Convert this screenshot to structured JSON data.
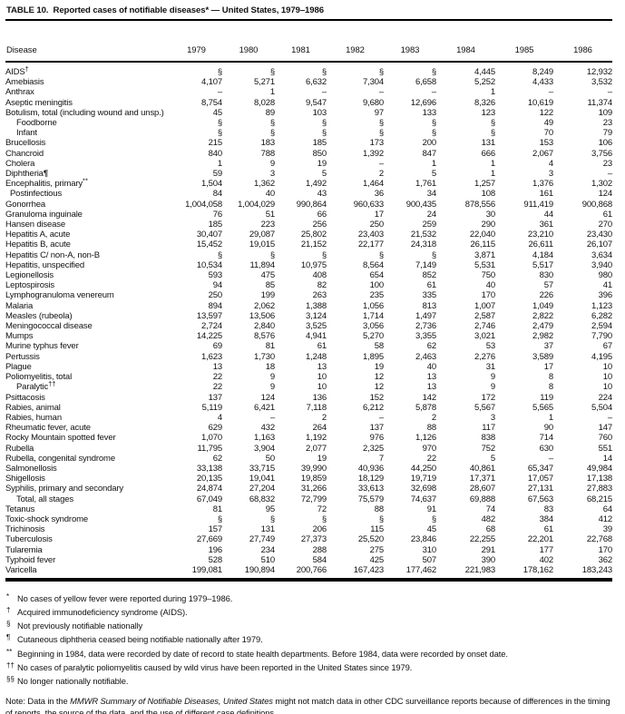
{
  "title": "TABLE 10.  Reported cases of notifiable diseases* — United States, 1979–1986",
  "table": {
    "columns": [
      "Disease",
      "1979",
      "1980",
      "1981",
      "1982",
      "1983",
      "1984",
      "1985",
      "1986"
    ],
    "rows": [
      {
        "disease": "AIDS",
        "marker": "†",
        "indent": 0,
        "values": [
          "§",
          "§",
          "§",
          "§",
          "§",
          "4,445",
          "8,249",
          "12,932"
        ]
      },
      {
        "disease": "Amebiasis",
        "marker": "",
        "indent": 0,
        "values": [
          "4,107",
          "5,271",
          "6,632",
          "7,304",
          "6,658",
          "5,252",
          "4,433",
          "3,532"
        ]
      },
      {
        "disease": "Anthrax",
        "marker": "",
        "indent": 0,
        "values": [
          "–",
          "1",
          "–",
          "–",
          "–",
          "1",
          "–",
          "–"
        ]
      },
      {
        "disease": "Aseptic meningitis",
        "marker": "",
        "indent": 0,
        "values": [
          "8,754",
          "8,028",
          "9,547",
          "9,680",
          "12,696",
          "8,326",
          "10,619",
          "11,374"
        ]
      },
      {
        "disease": "Botulism, total (including wound and unsp.)",
        "marker": "",
        "indent": 0,
        "values": [
          "45",
          "89",
          "103",
          "97",
          "133",
          "123",
          "122",
          "109"
        ]
      },
      {
        "disease": "Foodborne",
        "marker": "",
        "indent": 2,
        "values": [
          "§",
          "§",
          "§",
          "§",
          "§",
          "§",
          "49",
          "23"
        ]
      },
      {
        "disease": "Infant",
        "marker": "",
        "indent": 2,
        "values": [
          "§",
          "§",
          "§",
          "§",
          "§",
          "§",
          "70",
          "79"
        ]
      },
      {
        "disease": "Brucellosis",
        "marker": "",
        "indent": 0,
        "values": [
          "215",
          "183",
          "185",
          "173",
          "200",
          "131",
          "153",
          "106"
        ]
      },
      {
        "disease": "Chancroid",
        "marker": "",
        "indent": 0,
        "values": [
          "840",
          "788",
          "850",
          "1,392",
          "847",
          "666",
          "2,067",
          "3,756"
        ]
      },
      {
        "disease": "Cholera",
        "marker": "",
        "indent": 0,
        "values": [
          "1",
          "9",
          "19",
          "–",
          "1",
          "1",
          "4",
          "23"
        ]
      },
      {
        "disease": "Diphtheria",
        "marker": "¶",
        "indent": 0,
        "values": [
          "59",
          "3",
          "5",
          "2",
          "5",
          "1",
          "3",
          "–"
        ]
      },
      {
        "disease": "Encephalitis, primary",
        "marker": "**",
        "indent": 0,
        "values": [
          "1,504",
          "1,362",
          "1,492",
          "1,464",
          "1,761",
          "1,257",
          "1,376",
          "1,302"
        ]
      },
      {
        "disease": "Postinfectious",
        "marker": "",
        "indent": 1,
        "values": [
          "84",
          "40",
          "43",
          "36",
          "34",
          "108",
          "161",
          "124"
        ]
      },
      {
        "disease": "Gonorrhea",
        "marker": "",
        "indent": 0,
        "values": [
          "1,004,058",
          "1,004,029",
          "990,864",
          "960,633",
          "900,435",
          "878,556",
          "911,419",
          "900,868"
        ]
      },
      {
        "disease": "Granuloma inguinale",
        "marker": "",
        "indent": 0,
        "values": [
          "76",
          "51",
          "66",
          "17",
          "24",
          "30",
          "44",
          "61"
        ]
      },
      {
        "disease": "Hansen disease",
        "marker": "",
        "indent": 0,
        "values": [
          "185",
          "223",
          "256",
          "250",
          "259",
          "290",
          "361",
          "270"
        ]
      },
      {
        "disease": "Hepatitis A, acute",
        "marker": "",
        "indent": 0,
        "values": [
          "30,407",
          "29,087",
          "25,802",
          "23,403",
          "21,532",
          "22,040",
          "23,210",
          "23,430"
        ]
      },
      {
        "disease": "Hepatitis B, acute",
        "marker": "",
        "indent": 0,
        "values": [
          "15,452",
          "19,015",
          "21,152",
          "22,177",
          "24,318",
          "26,115",
          "26,611",
          "26,107"
        ]
      },
      {
        "disease": "Hepatitis C/ non-A, non-B",
        "marker": "",
        "indent": 0,
        "values": [
          "§",
          "§",
          "§",
          "§",
          "§",
          "3,871",
          "4,184",
          "3,634"
        ]
      },
      {
        "disease": "Hepatitis, unspecified",
        "marker": "",
        "indent": 0,
        "values": [
          "10,534",
          "11,894",
          "10,975",
          "8,564",
          "7,149",
          "5,531",
          "5,517",
          "3,940"
        ]
      },
      {
        "disease": "Legionellosis",
        "marker": "",
        "indent": 0,
        "values": [
          "593",
          "475",
          "408",
          "654",
          "852",
          "750",
          "830",
          "980"
        ]
      },
      {
        "disease": "Leptospirosis",
        "marker": "",
        "indent": 0,
        "values": [
          "94",
          "85",
          "82",
          "100",
          "61",
          "40",
          "57",
          "41"
        ]
      },
      {
        "disease": "Lymphogranuloma venereum",
        "marker": "",
        "indent": 0,
        "values": [
          "250",
          "199",
          "263",
          "235",
          "335",
          "170",
          "226",
          "396"
        ]
      },
      {
        "disease": "Malaria",
        "marker": "",
        "indent": 0,
        "values": [
          "894",
          "2,062",
          "1,388",
          "1,056",
          "813",
          "1,007",
          "1,049",
          "1,123"
        ]
      },
      {
        "disease": "Measles (rubeola)",
        "marker": "",
        "indent": 0,
        "values": [
          "13,597",
          "13,506",
          "3,124",
          "1,714",
          "1,497",
          "2,587",
          "2,822",
          "6,282"
        ]
      },
      {
        "disease": "Meningococcal disease",
        "marker": "",
        "indent": 0,
        "values": [
          "2,724",
          "2,840",
          "3,525",
          "3,056",
          "2,736",
          "2,746",
          "2,479",
          "2,594"
        ]
      },
      {
        "disease": "Mumps",
        "marker": "",
        "indent": 0,
        "values": [
          "14,225",
          "8,576",
          "4,941",
          "5,270",
          "3,355",
          "3,021",
          "2,982",
          "7,790"
        ]
      },
      {
        "disease": "Murine typhus fever",
        "marker": "",
        "indent": 0,
        "values": [
          "69",
          "81",
          "61",
          "58",
          "62",
          "53",
          "37",
          "67"
        ]
      },
      {
        "disease": "Pertussis",
        "marker": "",
        "indent": 0,
        "values": [
          "1,623",
          "1,730",
          "1,248",
          "1,895",
          "2,463",
          "2,276",
          "3,589",
          "4,195"
        ]
      },
      {
        "disease": "Plague",
        "marker": "",
        "indent": 0,
        "values": [
          "13",
          "18",
          "13",
          "19",
          "40",
          "31",
          "17",
          "10"
        ]
      },
      {
        "disease": "Poliomyelitis, total",
        "marker": "",
        "indent": 0,
        "values": [
          "22",
          "9",
          "10",
          "12",
          "13",
          "9",
          "8",
          "10"
        ]
      },
      {
        "disease": "Paralytic",
        "marker": "††",
        "indent": 2,
        "values": [
          "22",
          "9",
          "10",
          "12",
          "13",
          "9",
          "8",
          "10"
        ]
      },
      {
        "disease": "Psittacosis",
        "marker": "",
        "indent": 0,
        "values": [
          "137",
          "124",
          "136",
          "152",
          "142",
          "172",
          "119",
          "224"
        ]
      },
      {
        "disease": "Rabies, animal",
        "marker": "",
        "indent": 0,
        "values": [
          "5,119",
          "6,421",
          "7,118",
          "6,212",
          "5,878",
          "5,567",
          "5,565",
          "5,504"
        ]
      },
      {
        "disease": "Rabies, human",
        "marker": "",
        "indent": 0,
        "values": [
          "4",
          "–",
          "2",
          "–",
          "2",
          "3",
          "1",
          "–"
        ]
      },
      {
        "disease": "Rheumatic fever, acute",
        "marker": "",
        "indent": 0,
        "values": [
          "629",
          "432",
          "264",
          "137",
          "88",
          "117",
          "90",
          "147"
        ]
      },
      {
        "disease": "Rocky Mountain spotted fever",
        "marker": "",
        "indent": 0,
        "values": [
          "1,070",
          "1,163",
          "1,192",
          "976",
          "1,126",
          "838",
          "714",
          "760"
        ]
      },
      {
        "disease": "Rubella",
        "marker": "",
        "indent": 0,
        "values": [
          "11,795",
          "3,904",
          "2,077",
          "2,325",
          "970",
          "752",
          "630",
          "551"
        ]
      },
      {
        "disease": "Rubella, congenital syndrome",
        "marker": "",
        "indent": 0,
        "values": [
          "62",
          "50",
          "19",
          "7",
          "22",
          "5",
          "–",
          "14"
        ]
      },
      {
        "disease": "Salmonellosis",
        "marker": "",
        "indent": 0,
        "values": [
          "33,138",
          "33,715",
          "39,990",
          "40,936",
          "44,250",
          "40,861",
          "65,347",
          "49,984"
        ]
      },
      {
        "disease": "Shigellosis",
        "marker": "",
        "indent": 0,
        "values": [
          "20,135",
          "19,041",
          "19,859",
          "18,129",
          "19,719",
          "17,371",
          "17,057",
          "17,138"
        ]
      },
      {
        "disease": "Syphilis, primary and secondary",
        "marker": "",
        "indent": 0,
        "values": [
          "24,874",
          "27,204",
          "31,266",
          "33,613",
          "32,698",
          "28,607",
          "27,131",
          "27,883"
        ]
      },
      {
        "disease": "Total, all stages",
        "marker": "",
        "indent": 2,
        "values": [
          "67,049",
          "68,832",
          "72,799",
          "75,579",
          "74,637",
          "69,888",
          "67,563",
          "68,215"
        ]
      },
      {
        "disease": "Tetanus",
        "marker": "",
        "indent": 0,
        "values": [
          "81",
          "95",
          "72",
          "88",
          "91",
          "74",
          "83",
          "64"
        ]
      },
      {
        "disease": "Toxic-shock syndrome",
        "marker": "",
        "indent": 0,
        "values": [
          "§",
          "§",
          "§",
          "§",
          "§",
          "482",
          "384",
          "412"
        ]
      },
      {
        "disease": "Trichinosis",
        "marker": "",
        "indent": 0,
        "values": [
          "157",
          "131",
          "206",
          "115",
          "45",
          "68",
          "61",
          "39"
        ]
      },
      {
        "disease": "Tuberculosis",
        "marker": "",
        "indent": 0,
        "values": [
          "27,669",
          "27,749",
          "27,373",
          "25,520",
          "23,846",
          "22,255",
          "22,201",
          "22,768"
        ]
      },
      {
        "disease": "Tularemia",
        "marker": "",
        "indent": 0,
        "values": [
          "196",
          "234",
          "288",
          "275",
          "310",
          "291",
          "177",
          "170"
        ]
      },
      {
        "disease": "Typhoid fever",
        "marker": "",
        "indent": 0,
        "values": [
          "528",
          "510",
          "584",
          "425",
          "507",
          "390",
          "402",
          "362"
        ]
      },
      {
        "disease": "Varicella",
        "marker": "",
        "indent": 0,
        "values": [
          "199,081",
          "190,894",
          "200,766",
          "167,423",
          "177,462",
          "221,983",
          "178,162",
          "183,243"
        ]
      }
    ]
  },
  "footnotes": [
    {
      "marker": "*",
      "text": "No cases of yellow fever were reported during 1979–1986."
    },
    {
      "marker": "†",
      "text": "Acquired immunodeficiency syndrome (AIDS)."
    },
    {
      "marker": "§",
      "text": "Not previously notifiable nationally"
    },
    {
      "marker": "¶",
      "text": "Cutaneous diphtheria ceased being notifiable nationally after 1979."
    },
    {
      "marker": "**",
      "text": "Beginning in 1984, data were recorded by date of record to state health departments.  Before 1984, data were recorded by onset date."
    },
    {
      "marker": "††",
      "text": "No cases of paralytic poliomyelitis caused by wild virus have been reported in the United States since 1979."
    },
    {
      "marker": "§§",
      "text": "No longer nationally notifiable."
    }
  ],
  "note": {
    "prefix": "Note: Data in the ",
    "italic": "MMWR Summary of Notifiable Diseases, United States",
    "suffix": " might not match data in other CDC surveillance reports because of differences in the timing of reports, the source of the data, and the use of different case definitions."
  }
}
